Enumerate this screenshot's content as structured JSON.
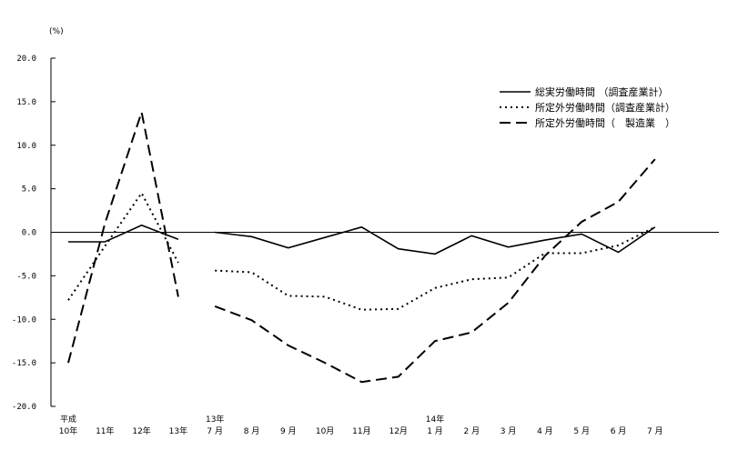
{
  "chart_data": {
    "type": "line",
    "unit_label": "(%)",
    "ylim": [
      -20,
      20
    ],
    "y_ticks": [
      "20.0",
      "15.0",
      "10.0",
      "5.0",
      "0.0",
      "-5.0",
      "-10.0",
      "-15.0",
      "-20.0"
    ],
    "y_tick_values": [
      20,
      15,
      10,
      5,
      0,
      -5,
      -10,
      -15,
      -20
    ],
    "x_labels": [
      {
        "top": "平成",
        "bottom": "10年"
      },
      {
        "top": "",
        "bottom": "11年"
      },
      {
        "top": "",
        "bottom": "12年"
      },
      {
        "top": "",
        "bottom": "13年"
      },
      {
        "top": "13年",
        "bottom": "7 月"
      },
      {
        "top": "",
        "bottom": "8 月"
      },
      {
        "top": "",
        "bottom": "9 月"
      },
      {
        "top": "",
        "bottom": "10月"
      },
      {
        "top": "",
        "bottom": "11月"
      },
      {
        "top": "",
        "bottom": "12月"
      },
      {
        "top": "14年",
        "bottom": "1 月"
      },
      {
        "top": "",
        "bottom": "2 月"
      },
      {
        "top": "",
        "bottom": "3 月"
      },
      {
        "top": "",
        "bottom": "4 月"
      },
      {
        "top": "",
        "bottom": "5 月"
      },
      {
        "top": "",
        "bottom": "6 月"
      },
      {
        "top": "",
        "bottom": "7 月"
      }
    ],
    "annual_index": [
      0,
      1,
      2,
      3
    ],
    "monthly_index": [
      4,
      5,
      6,
      7,
      8,
      9,
      10,
      11,
      12,
      13,
      14,
      15,
      16
    ],
    "series": [
      {
        "name": "総実労働時間 （調査産業計）",
        "style": "solid",
        "annual": [
          -1.1,
          -1.1,
          0.8,
          -0.8
        ],
        "monthly": [
          0.0,
          -0.5,
          -1.8,
          -0.6,
          0.6,
          -1.9,
          -2.5,
          -0.4,
          -1.7,
          -0.9,
          -0.2,
          -2.3,
          0.6
        ]
      },
      {
        "name": "所定外労働時間（調査産業計）",
        "style": "dotted",
        "annual": [
          -7.8,
          -1.6,
          4.5,
          -3.5
        ],
        "monthly": [
          -4.4,
          -4.6,
          -7.3,
          -7.4,
          -8.9,
          -8.8,
          -6.4,
          -5.4,
          -5.2,
          -2.4,
          -2.4,
          -1.5,
          0.6
        ]
      },
      {
        "name": "所定外労働時間（　製造業　）",
        "style": "dashed",
        "annual": [
          -15.0,
          1.0,
          13.8,
          -7.4
        ],
        "monthly": [
          -8.5,
          -10.1,
          -13.0,
          -15.0,
          -17.2,
          -16.6,
          -12.5,
          -11.5,
          -8.1,
          -2.7,
          1.2,
          3.5,
          8.4
        ]
      }
    ],
    "legend_position": "top-right"
  }
}
